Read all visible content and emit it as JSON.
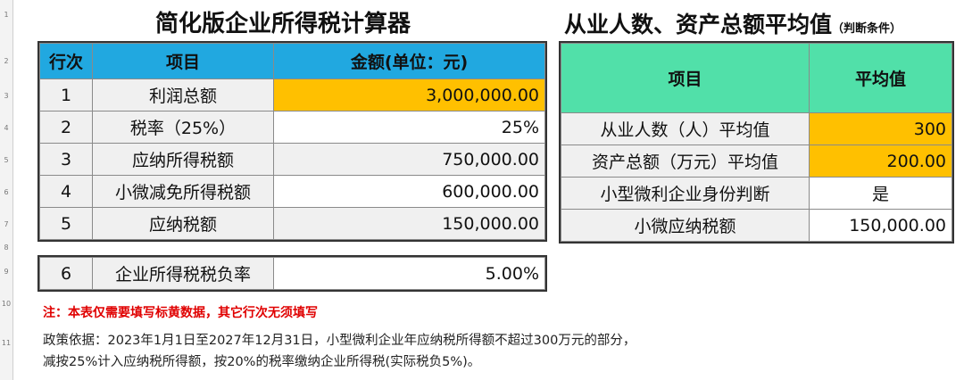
{
  "row_numbers": [
    "1",
    "2",
    "3",
    "4",
    "5",
    "6",
    "7",
    "8",
    "9",
    "10",
    "11"
  ],
  "left": {
    "title": "简化版企业所得税计算器",
    "headers": [
      "行次",
      "项目",
      "金额(单位：元)"
    ],
    "rows": [
      {
        "no": "1",
        "item": "利润总额",
        "amount": "3,000,000.00",
        "highlight": true
      },
      {
        "no": "2",
        "item": "税率（25%）",
        "amount": "25%",
        "highlight": false
      },
      {
        "no": "3",
        "item": "应纳所得税额",
        "amount": "750,000.00",
        "highlight": false
      },
      {
        "no": "4",
        "item": "小微减免所得税额",
        "amount": "600,000.00",
        "highlight": false
      },
      {
        "no": "5",
        "item": "应纳税额",
        "amount": "150,000.00",
        "highlight": false
      }
    ],
    "burden_row": {
      "no": "6",
      "item": "企业所得税税负率",
      "amount": "5.00%"
    }
  },
  "right": {
    "title": "从业人数、资产总额平均值",
    "title_suffix": "（判断条件）",
    "headers": [
      "项目",
      "平均值"
    ],
    "rows": [
      {
        "item": "从业人数（人）平均值",
        "value": "300",
        "highlight": true
      },
      {
        "item": "资产总额（万元）平均值",
        "value": "200.00",
        "highlight": true
      },
      {
        "item": "小型微利企业身份判断",
        "value": "是",
        "highlight": false
      },
      {
        "item": "小微应纳税额",
        "value": "150,000.00",
        "highlight": false
      }
    ]
  },
  "note": "注：本表仅需要填写标黄数据，其它行次无须填写",
  "policy_line1": "政策依据：2023年1月1日至2027年12月31日，小型微利企业年应纳税所得额不超过300万元的部分，",
  "policy_line2": "减按25%计入应纳税所得额，按20%的税率缴纳企业所得税(实际税负5%)。",
  "colors": {
    "header_blue": "#21a8e0",
    "header_green": "#51e0a9",
    "input_yellow": "#ffc000",
    "note_red": "#e00000"
  }
}
